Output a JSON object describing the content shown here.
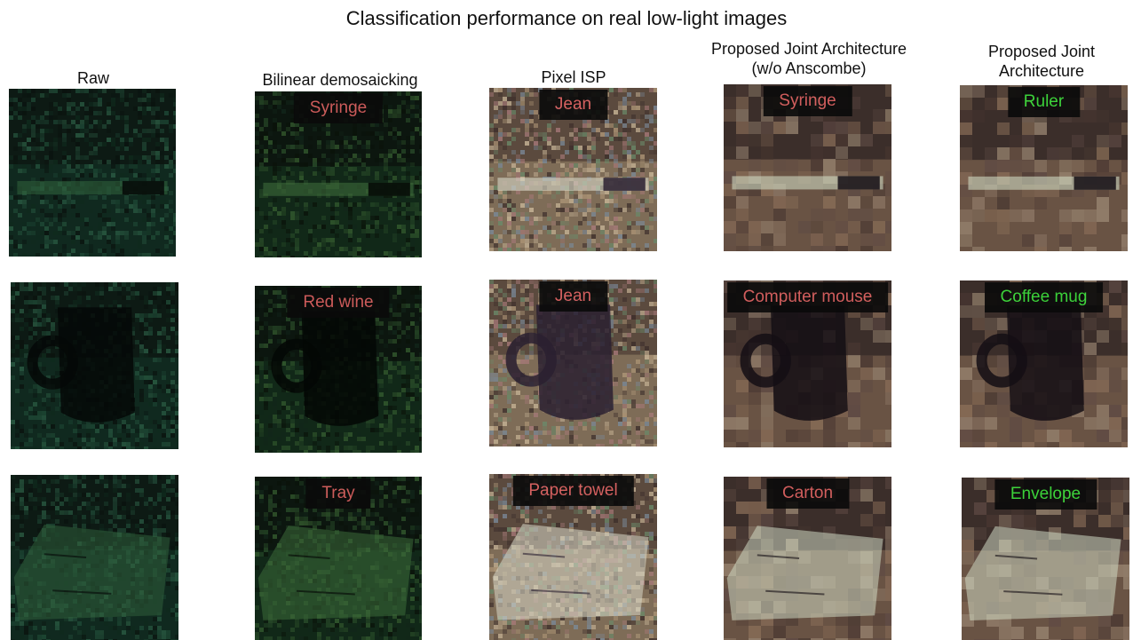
{
  "title": "Classification performance on real low-light images",
  "columns": [
    {
      "id": "raw",
      "lines": [
        "Raw"
      ]
    },
    {
      "id": "bilinear",
      "lines": [
        "Bilinear demosaicking"
      ]
    },
    {
      "id": "pixel",
      "lines": [
        "Pixel ISP"
      ]
    },
    {
      "id": "joint_noans",
      "lines": [
        "Proposed Joint Architecture",
        "(w/o Anscombe)"
      ]
    },
    {
      "id": "joint",
      "lines": [
        "Proposed Joint",
        "Architecture"
      ]
    }
  ],
  "rows": [
    {
      "scene": "ruler",
      "predictions": {
        "bilinear": "Syringe",
        "pixel": "Jean",
        "joint_noans": "Syringe",
        "joint": "Ruler"
      },
      "correct": {
        "bilinear": false,
        "pixel": false,
        "joint_noans": false,
        "joint": true
      }
    },
    {
      "scene": "mug",
      "predictions": {
        "bilinear": "Red wine",
        "pixel": "Jean",
        "joint_noans": "Computer mouse",
        "joint": "Coffee mug"
      },
      "correct": {
        "bilinear": false,
        "pixel": false,
        "joint_noans": false,
        "joint": true
      }
    },
    {
      "scene": "envelope",
      "predictions": {
        "bilinear": "Tray",
        "pixel": "Paper towel",
        "joint_noans": "Carton",
        "joint": "Envelope"
      },
      "correct": {
        "bilinear": false,
        "pixel": false,
        "joint_noans": false,
        "joint": true
      }
    }
  ],
  "colors": {
    "incorrect": "#e06262",
    "correct": "#3be23b"
  }
}
